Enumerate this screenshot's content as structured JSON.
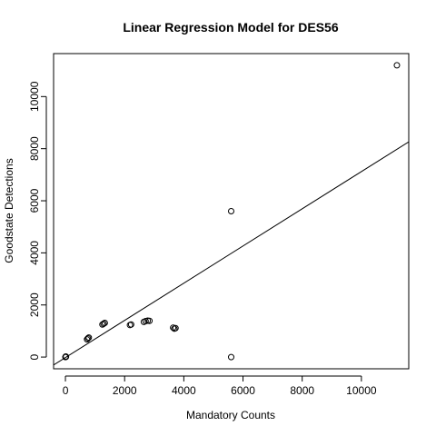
{
  "chart_data": {
    "type": "scatter",
    "title": "Linear Regression Model for DES56",
    "xlabel": "Mandatory Counts",
    "ylabel": "Goodstate Detections",
    "xlim": [
      -400,
      11600
    ],
    "ylim": [
      -450,
      11650
    ],
    "xticks": [
      0,
      2000,
      4000,
      6000,
      8000,
      10000
    ],
    "yticks": [
      0,
      2000,
      4000,
      6000,
      8000,
      10000
    ],
    "points": [
      {
        "x": 0,
        "y": 0
      },
      {
        "x": 10,
        "y": 20
      },
      {
        "x": 20,
        "y": 10
      },
      {
        "x": 730,
        "y": 680
      },
      {
        "x": 760,
        "y": 720
      },
      {
        "x": 790,
        "y": 750
      },
      {
        "x": 1250,
        "y": 1250
      },
      {
        "x": 1290,
        "y": 1280
      },
      {
        "x": 1330,
        "y": 1310
      },
      {
        "x": 2180,
        "y": 1230
      },
      {
        "x": 2220,
        "y": 1250
      },
      {
        "x": 2650,
        "y": 1350
      },
      {
        "x": 2710,
        "y": 1380
      },
      {
        "x": 2780,
        "y": 1400
      },
      {
        "x": 2840,
        "y": 1390
      },
      {
        "x": 3640,
        "y": 1130
      },
      {
        "x": 3680,
        "y": 1090
      },
      {
        "x": 3720,
        "y": 1110
      },
      {
        "x": 5600,
        "y": 5600
      },
      {
        "x": 5600,
        "y": 0
      },
      {
        "x": 11200,
        "y": 11200
      }
    ],
    "regression_line": {
      "intercept": -20,
      "slope": 0.714
    }
  }
}
